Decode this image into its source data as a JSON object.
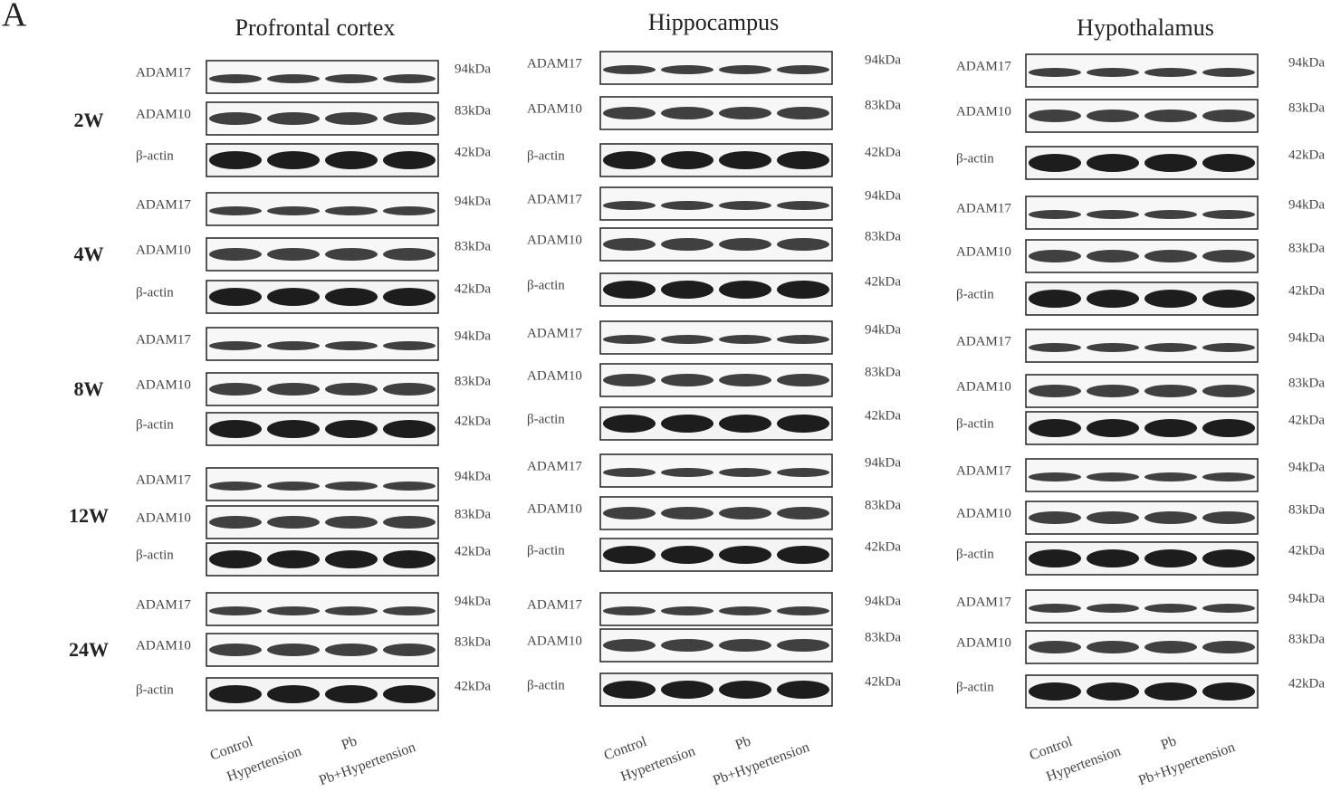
{
  "panel_label": "A",
  "time_points": [
    "2W",
    "4W",
    "8W",
    "12W",
    "24W"
  ],
  "panels": [
    {
      "title": "Profrontal cortex",
      "groups": [
        "Control",
        "Hypertension",
        "Pb",
        "Pb+Hypertension"
      ],
      "blocks": [
        [
          {
            "protein": "ADAM17",
            "size": "94kDa"
          },
          {
            "protein": "ADAM10",
            "size": "83kDa"
          },
          {
            "protein": "β-actin",
            "size": "42kDa"
          }
        ],
        [
          {
            "protein": "ADAM17",
            "size": "94kDa"
          },
          {
            "protein": "ADAM10",
            "size": "83kDa"
          },
          {
            "protein": "β-actin",
            "size": "42kDa"
          }
        ],
        [
          {
            "protein": "ADAM17",
            "size": "94kDa"
          },
          {
            "protein": "ADAM10",
            "size": "83kDa"
          },
          {
            "protein": "β-actin",
            "size": "42kDa"
          }
        ],
        [
          {
            "protein": "ADAM17",
            "size": "94kDa"
          },
          {
            "protein": "ADAM10",
            "size": "83kDa"
          },
          {
            "protein": "β-actin",
            "size": "42kDa"
          }
        ],
        [
          {
            "protein": "ADAM17",
            "size": "94kDa"
          },
          {
            "protein": "ADAM10",
            "size": "83kDa"
          },
          {
            "protein": "β-actin",
            "size": "42kDa"
          }
        ]
      ]
    },
    {
      "title": "Hippocampus",
      "groups": [
        "Control",
        "Hypertension",
        "Pb",
        "Pb+Hypertension"
      ],
      "blocks": [
        [
          {
            "protein": "ADAM17",
            "size": "94kDa"
          },
          {
            "protein": "ADAM10",
            "size": "83kDa"
          },
          {
            "protein": "β-actin",
            "size": "42kDa"
          }
        ],
        [
          {
            "protein": "ADAM17",
            "size": "94kDa"
          },
          {
            "protein": "ADAM10",
            "size": "83kDa"
          },
          {
            "protein": "β-actin",
            "size": "42kDa"
          }
        ],
        [
          {
            "protein": "ADAM17",
            "size": "94kDa"
          },
          {
            "protein": "ADAM10",
            "size": "83kDa"
          },
          {
            "protein": "β-actin",
            "size": "42kDa"
          }
        ],
        [
          {
            "protein": "ADAM17",
            "size": "94kDa"
          },
          {
            "protein": "ADAM10",
            "size": "83kDa"
          },
          {
            "protein": "β-actin",
            "size": "42kDa"
          }
        ],
        [
          {
            "protein": "ADAM17",
            "size": "94kDa"
          },
          {
            "protein": "ADAM10",
            "size": "83kDa"
          },
          {
            "protein": "β-actin",
            "size": "42kDa"
          }
        ]
      ]
    },
    {
      "title": "Hypothalamus",
      "groups": [
        "Control",
        "Hypertension",
        "Pb",
        "Pb+Hypertension"
      ],
      "blocks": [
        [
          {
            "protein": "ADAM17",
            "size": "94kDa"
          },
          {
            "protein": "ADAM10",
            "size": "83kDa"
          },
          {
            "protein": "β-actin",
            "size": "42kDa"
          }
        ],
        [
          {
            "protein": "ADAM17",
            "size": "94kDa"
          },
          {
            "protein": "ADAM10",
            "size": "83kDa"
          },
          {
            "protein": "β-actin",
            "size": "42kDa"
          }
        ],
        [
          {
            "protein": "ADAM17",
            "size": "94kDa"
          },
          {
            "protein": "ADAM10",
            "size": "83kDa"
          },
          {
            "protein": "β-actin",
            "size": "42kDa"
          }
        ],
        [
          {
            "protein": "ADAM17",
            "size": "94kDa"
          },
          {
            "protein": "ADAM10",
            "size": "83kDa"
          },
          {
            "protein": "β-actin",
            "size": "42kDa"
          }
        ],
        [
          {
            "protein": "ADAM17",
            "size": "94kDa"
          },
          {
            "protein": "ADAM10",
            "size": "83kDa"
          },
          {
            "protein": "β-actin",
            "size": "42kDa"
          }
        ]
      ]
    }
  ]
}
